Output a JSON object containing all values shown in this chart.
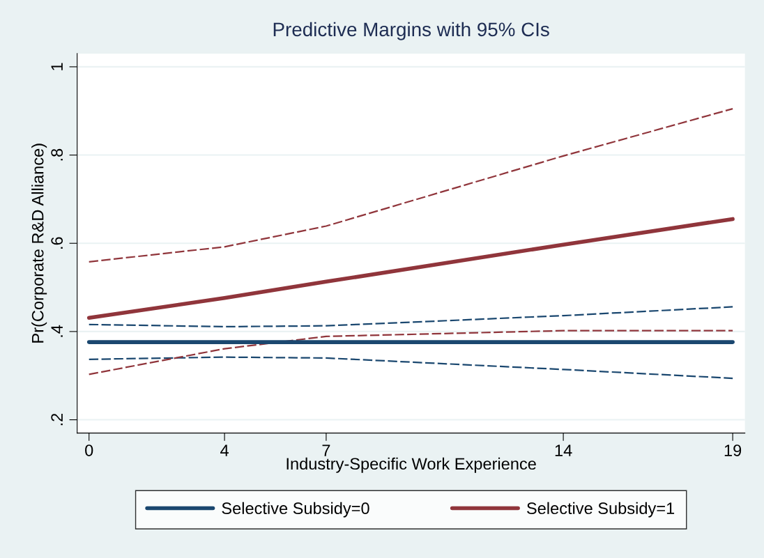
{
  "chart_data": {
    "type": "line",
    "title": "Predictive Margins with 95% CIs",
    "xlabel": "Industry-Specific Work Experience",
    "ylabel": "Pr(Corporate R&D Alliance)",
    "x": [
      0,
      4,
      7,
      14,
      19
    ],
    "series": [
      {
        "name": "Selective Subsidy=0",
        "color": "#1a476f",
        "values": [
          0.376,
          0.376,
          0.376,
          0.376,
          0.376
        ]
      },
      {
        "name": "Selective Subsidy=1",
        "color": "#90353b",
        "values": [
          0.431,
          0.476,
          0.513,
          0.597,
          0.655
        ]
      },
      {
        "color": "#1a476f",
        "line_style": "dashed",
        "values": [
          0.337,
          0.342,
          0.34,
          0.314,
          0.294
        ]
      },
      {
        "color": "#1a476f",
        "line_style": "dashed",
        "values": [
          0.416,
          0.411,
          0.413,
          0.436,
          0.456
        ]
      },
      {
        "color": "#90353b",
        "line_style": "dashed",
        "values": [
          0.303,
          0.361,
          0.389,
          0.402,
          0.402
        ]
      },
      {
        "color": "#90353b",
        "line_style": "dashed",
        "values": [
          0.558,
          0.592,
          0.639,
          0.798,
          0.905
        ]
      }
    ],
    "xlim": [
      -0.35,
      19.36
    ],
    "xticks": [
      0,
      4,
      7,
      14,
      19
    ],
    "ylim": [
      0.17,
      1.03
    ],
    "yticks": [
      {
        "value": 0.2,
        "label": ".2"
      },
      {
        "value": 0.4,
        "label": ".4"
      },
      {
        "value": 0.6,
        "label": ".6"
      },
      {
        "value": 0.8,
        "label": ".8"
      },
      {
        "value": 1,
        "label": "1"
      }
    ],
    "grid": "y",
    "legend": "bottom",
    "line_style": "solid",
    "marker": "none"
  }
}
